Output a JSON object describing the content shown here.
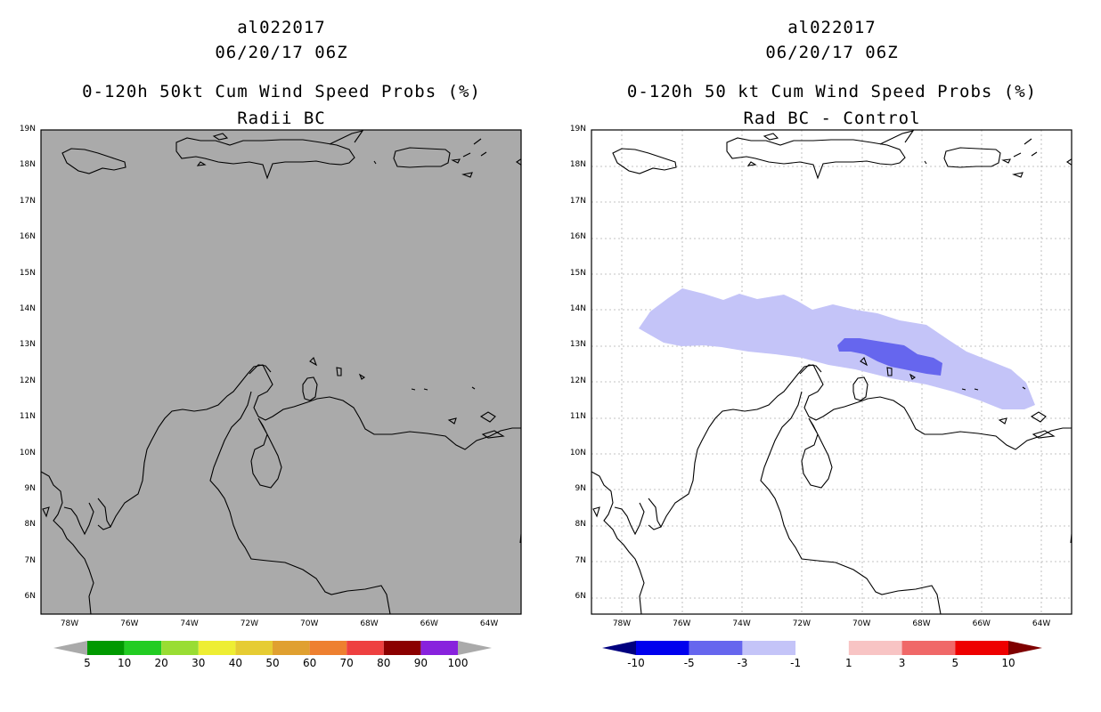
{
  "left_panel": {
    "storm_id": "al022017",
    "datetime": "06/20/17 06Z",
    "product": "0-120h 50kt Cum Wind Speed Probs (%)",
    "subtitle": "Radii BC",
    "background_color": "#aaaaaa"
  },
  "right_panel": {
    "storm_id": "al022017",
    "datetime": "06/20/17 06Z",
    "product": "0-120h 50 kt Cum Wind Speed Probs (%)",
    "subtitle": "Rad BC - Control"
  },
  "map": {
    "lat_labels": [
      "19N",
      "18N",
      "17N",
      "16N",
      "15N",
      "14N",
      "13N",
      "12N",
      "11N",
      "10N",
      "9N",
      "8N",
      "7N",
      "6N"
    ],
    "lon_labels": [
      "78W",
      "76W",
      "74W",
      "72W",
      "70W",
      "68W",
      "66W",
      "64W"
    ],
    "lat_range": [
      5.6,
      19.0
    ],
    "lon_range": [
      -79.0,
      -63.0
    ]
  },
  "left_colorbar": {
    "labels": [
      "5",
      "10",
      "20",
      "30",
      "40",
      "50",
      "60",
      "70",
      "80",
      "90",
      "100"
    ],
    "colors": [
      "#009900",
      "#22cc22",
      "#99dd33",
      "#eeee33",
      "#e6cc33",
      "#e0a030",
      "#ee8030",
      "#ee4040",
      "#8b0000",
      "#8822dd"
    ],
    "under_color": "#aaaaaa",
    "over_color": "#aaaaaa"
  },
  "right_colorbar": {
    "labels": [
      "-10",
      "-5",
      "-3",
      "-1",
      "1",
      "3",
      "5",
      "10"
    ],
    "colors": [
      "#0000ee",
      "#6666ee",
      "#c4c4f8",
      "#ffffff",
      "#f8c4c4",
      "#f06868",
      "#ee0000"
    ],
    "under_color": "#00007f",
    "over_color": "#7f0000"
  },
  "diff_field": {
    "light_blue_color": "#c4c4f8",
    "medium_blue_color": "#6666ee"
  }
}
